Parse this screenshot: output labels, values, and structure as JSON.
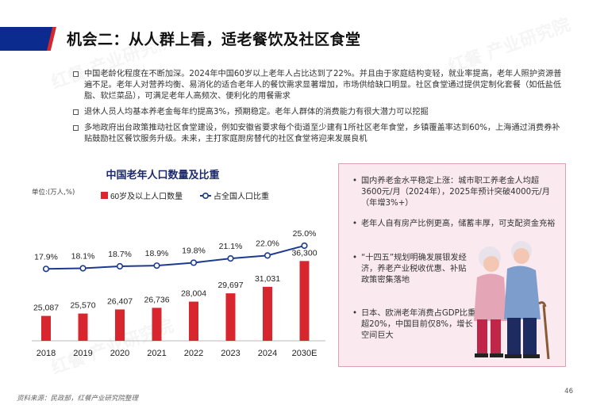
{
  "page": {
    "title": "机会二：从人群上看，适老餐饮及社区食堂",
    "page_number": "46",
    "source": "资料来源：民政部，红餐产业研究院整理",
    "watermark": "红餐 产业研究院"
  },
  "bullets": [
    "中国老龄化程度在不断加深。2024年中国60岁以上老年人占比达到了22%。并且由于家庭结构变轻，就业率提高，老年人照护资源普遍不足。老年人对营养均衡、易消化的适合老年人的餐饮需求显著增加，市场供给缺口明显。社区食堂通过提供定制化套餐（如低盐低脂、软烂菜品），可满足老年人高频次、便利化的用餐需求",
    "退休人员人均基本养老金每年约提高3%，预期稳定。老年人群体的消费能力有很大潜力可以挖掘",
    "多地政府出台政策推动社区食堂建设，例如安徽省要求每个街道至少建有1所社区老年食堂，乡镇覆盖率达到60%，上海通过消费券补贴鼓励社区餐饮服务升级。未来，主打家庭厨房替代的社区食堂将迎来发展良机"
  ],
  "info_box": [
    "国内养老金水平稳定上涨：城市职工养老金人均超3600元/月（2024年），2025年预计突破4000元/月（年增3%+）",
    "老年人自有房产比例更高，储蓄丰厚，可支配资金充裕",
    "“十四五”规划明确发展银发经济，养老产业税收优惠、补贴政策密集落地",
    "日本、欧洲老年消费占GDP比重超20%，中国目前仅8%，增长空间巨大"
  ],
  "colors": {
    "bar": "#d7262e",
    "line": "#1d3a8f",
    "header_blue": "#0c2b8f",
    "header_red": "#d7262e",
    "box_bg": "#fae9ee"
  },
  "chart_data": {
    "type": "bar+line",
    "title": "中国老年人口数量及比重",
    "unit_label": "单位:(万人,%)",
    "categories": [
      "2018",
      "2019",
      "2020",
      "2021",
      "2022",
      "2023",
      "2024",
      "2030E"
    ],
    "series": [
      {
        "name": "60岁及以上人口数量",
        "type": "bar",
        "values": [
          25087,
          25570,
          26407,
          26736,
          28004,
          29697,
          31031,
          36300
        ],
        "labels": [
          "25,087",
          "25,570",
          "26,407",
          "26,736",
          "28,004",
          "29,697",
          "31,031",
          "36,300"
        ]
      },
      {
        "name": "占全国人口比重",
        "type": "line",
        "values": [
          17.9,
          18.1,
          18.7,
          18.9,
          19.8,
          21.1,
          22.0,
          25.0
        ],
        "labels": [
          "17.9%",
          "18.1%",
          "18.7%",
          "18.9%",
          "19.8%",
          "21.1%",
          "22.0%",
          "25.0%"
        ]
      }
    ],
    "legend_position": "top",
    "grid": false
  }
}
